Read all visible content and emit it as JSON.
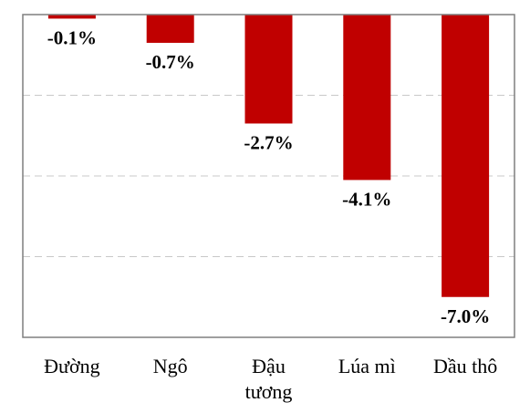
{
  "chart_data": {
    "type": "bar",
    "categories": [
      [
        "Đường"
      ],
      [
        "Ngô"
      ],
      [
        "Đậu",
        "tương"
      ],
      [
        "Lúa mì"
      ],
      [
        "Dầu thô"
      ]
    ],
    "values": [
      -0.1,
      -0.7,
      -2.7,
      -4.1,
      -7.0
    ],
    "data_labels": [
      "-0.1%",
      "-0.7%",
      "-2.7%",
      "-4.1%",
      "-7.0%"
    ],
    "ylim": [
      -8,
      0
    ],
    "grid": true,
    "bar_color": "#C00000",
    "grid_color": "#C8C8C8",
    "frame_color": "#7F7F7F"
  }
}
